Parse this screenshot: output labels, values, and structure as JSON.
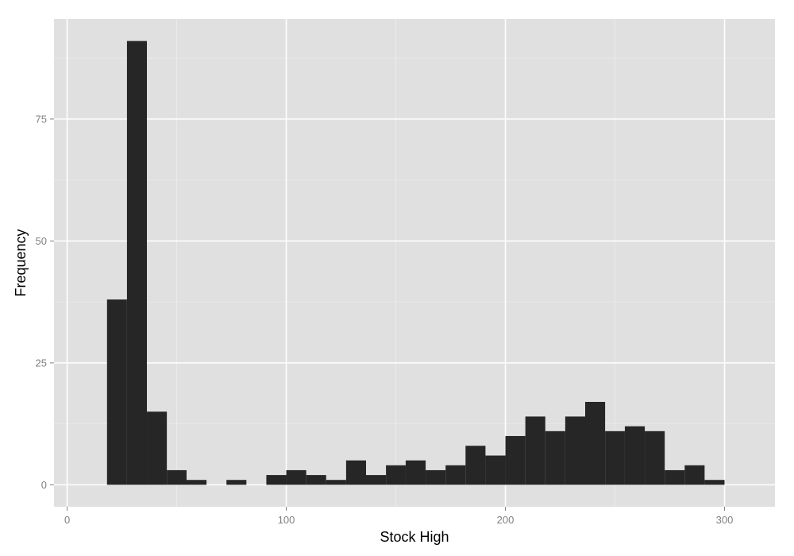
{
  "chart_data": {
    "type": "bar",
    "title": "",
    "xlabel": "Stock High",
    "ylabel": "Frequency",
    "bin_width": 9.09,
    "bins": [
      {
        "x0": 18.2,
        "x1": 27.3,
        "count": 38
      },
      {
        "x0": 27.3,
        "x1": 36.4,
        "count": 91
      },
      {
        "x0": 36.4,
        "x1": 45.5,
        "count": 15
      },
      {
        "x0": 45.5,
        "x1": 54.5,
        "count": 3
      },
      {
        "x0": 54.5,
        "x1": 63.6,
        "count": 1
      },
      {
        "x0": 63.6,
        "x1": 72.7,
        "count": 0
      },
      {
        "x0": 72.7,
        "x1": 81.8,
        "count": 1
      },
      {
        "x0": 81.8,
        "x1": 90.9,
        "count": 0
      },
      {
        "x0": 90.9,
        "x1": 100.0,
        "count": 2
      },
      {
        "x0": 100.0,
        "x1": 109.1,
        "count": 3
      },
      {
        "x0": 109.1,
        "x1": 118.2,
        "count": 2
      },
      {
        "x0": 118.2,
        "x1": 127.3,
        "count": 1
      },
      {
        "x0": 127.3,
        "x1": 136.4,
        "count": 5
      },
      {
        "x0": 136.4,
        "x1": 145.5,
        "count": 2
      },
      {
        "x0": 145.5,
        "x1": 154.5,
        "count": 4
      },
      {
        "x0": 154.5,
        "x1": 163.6,
        "count": 5
      },
      {
        "x0": 163.6,
        "x1": 172.7,
        "count": 3
      },
      {
        "x0": 172.7,
        "x1": 181.8,
        "count": 4
      },
      {
        "x0": 181.8,
        "x1": 190.9,
        "count": 8
      },
      {
        "x0": 190.9,
        "x1": 200.0,
        "count": 6
      },
      {
        "x0": 200.0,
        "x1": 209.1,
        "count": 10
      },
      {
        "x0": 209.1,
        "x1": 218.2,
        "count": 14
      },
      {
        "x0": 218.2,
        "x1": 227.3,
        "count": 11
      },
      {
        "x0": 227.3,
        "x1": 236.4,
        "count": 14
      },
      {
        "x0": 236.4,
        "x1": 245.5,
        "count": 17
      },
      {
        "x0": 245.5,
        "x1": 254.5,
        "count": 11
      },
      {
        "x0": 254.5,
        "x1": 263.6,
        "count": 12
      },
      {
        "x0": 263.6,
        "x1": 272.7,
        "count": 11
      },
      {
        "x0": 272.7,
        "x1": 281.8,
        "count": 3
      },
      {
        "x0": 281.8,
        "x1": 290.9,
        "count": 4
      },
      {
        "x0": 290.9,
        "x1": 300.0,
        "count": 1
      }
    ],
    "xlim": [
      -6,
      323
    ],
    "ylim": [
      -4.5,
      95.5
    ],
    "x_ticks": [
      0,
      100,
      200,
      300
    ],
    "y_ticks": [
      0,
      25,
      50,
      75
    ],
    "grid": true,
    "colors": {
      "panel": "#e0e0e0",
      "grid": "#ffffff",
      "bar": "#262626",
      "tick_text": "#7f7f7f",
      "axis_title": "#000000"
    }
  }
}
